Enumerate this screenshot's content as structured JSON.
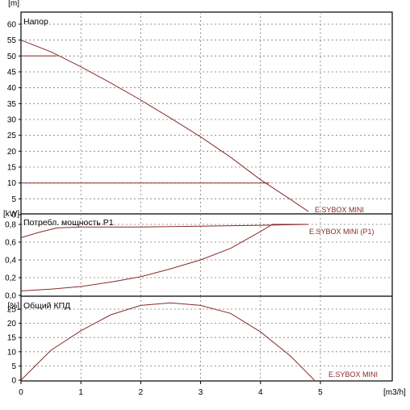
{
  "chart_data": {
    "type": "line",
    "xlabel": "[m3/h]",
    "xlim": [
      0,
      6.2
    ],
    "xticks": [
      0,
      1,
      2,
      3,
      4,
      5
    ],
    "panels": [
      {
        "key": "head",
        "title": "Напор",
        "unit": "[m]",
        "ylim": [
          0,
          62
        ],
        "yticks": [
          0,
          5,
          10,
          15,
          20,
          25,
          30,
          35,
          40,
          45,
          50,
          55,
          60
        ],
        "tick_decimal": ".",
        "series": [
          {
            "name": "E.SYBOX MINI",
            "x": [
              0,
              0.5,
              1,
              1.5,
              2,
              2.5,
              3,
              3.5,
              4,
              4.5,
              4.8
            ],
            "y": [
              55,
              51.3,
              46.6,
              41.5,
              36.1,
              30.4,
              24.5,
              18.1,
              11,
              4.8,
              1
            ]
          },
          {
            "x": [
              0,
              0.6
            ],
            "y": [
              50,
              50
            ]
          },
          {
            "x": [
              0,
              4.15
            ],
            "y": [
              10,
              10
            ]
          }
        ]
      },
      {
        "key": "power",
        "title": "Потребл. мощность P1",
        "unit": "[kW]",
        "ylim": [
          0,
          0.88
        ],
        "yticks": [
          0,
          0.2,
          0.4,
          0.6,
          0.8
        ],
        "tick_decimal": ",",
        "series": [
          {
            "name": "E.SYBOX MINI (P1)",
            "x": [
              0,
              0.5,
              1,
              1.5,
              2,
              2.5,
              3,
              3.5,
              4,
              4.2,
              4.8
            ],
            "y": [
              0.05,
              0.07,
              0.1,
              0.15,
              0.21,
              0.3,
              0.4,
              0.53,
              0.72,
              0.8,
              0.8
            ]
          },
          {
            "x": [
              0,
              0.3,
              0.6,
              1,
              2,
              3,
              4,
              4.8
            ],
            "y": [
              0.65,
              0.71,
              0.76,
              0.77,
              0.77,
              0.78,
              0.79,
              0.8
            ]
          }
        ]
      },
      {
        "key": "efficiency",
        "title": "Общий КПД",
        "unit": "[%]",
        "ylim": [
          0,
          29
        ],
        "yticks": [
          0,
          5,
          10,
          15,
          20,
          25
        ],
        "tick_decimal": ".",
        "series": [
          {
            "name": "E.SYBOX MINI",
            "x": [
              0,
              0.5,
              1,
              1.5,
              2,
              2.5,
              3,
              3.5,
              4,
              4.5,
              4.9
            ],
            "y": [
              0,
              10.5,
              17.4,
              23,
              26.3,
              27.2,
              26.3,
              23.5,
              17,
              8.5,
              0
            ]
          }
        ]
      }
    ],
    "colors": {
      "curve": "#8a2a2a",
      "grid": "#7a7a7a",
      "frame": "#000000"
    }
  }
}
